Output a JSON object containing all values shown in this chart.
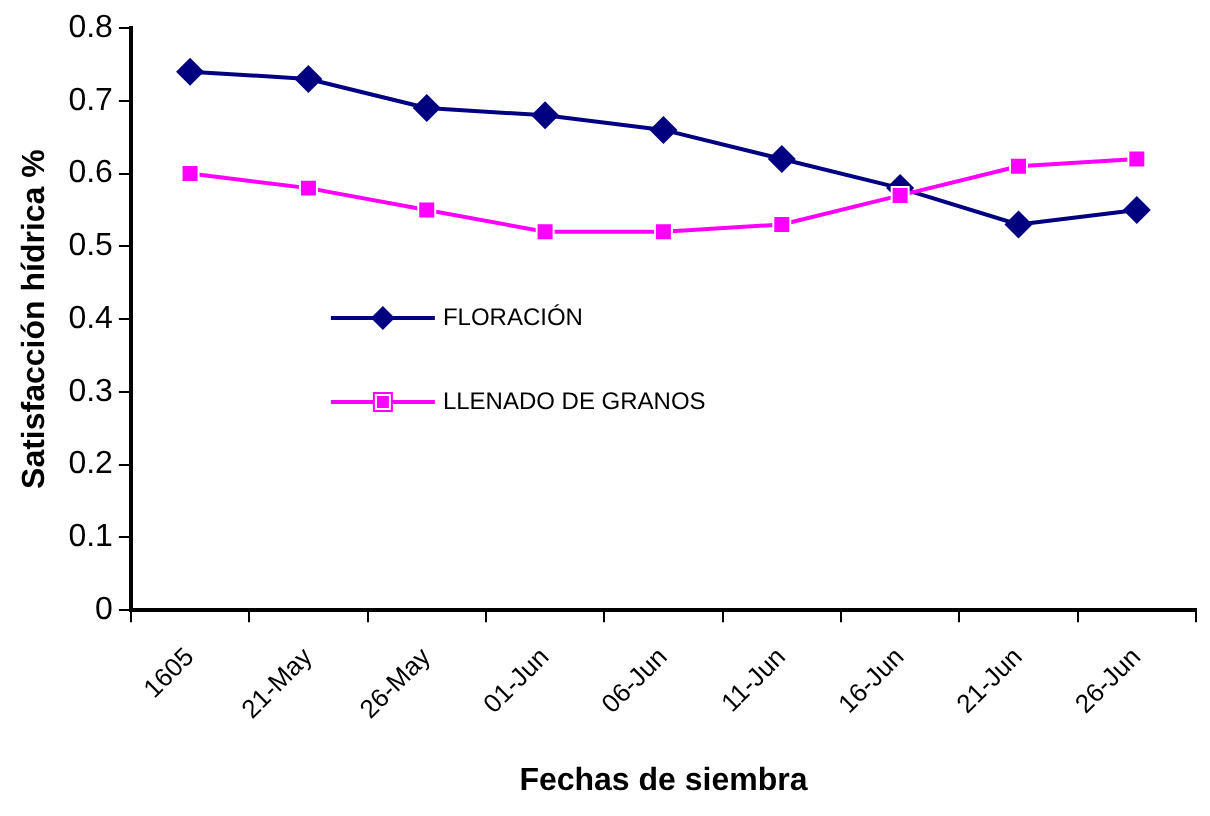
{
  "chart_data": {
    "type": "line",
    "xlabel": "Fechas de siembra",
    "ylabel": "Satisfacción hídrica %",
    "categories": [
      "1605",
      "21-May",
      "26-May",
      "01-Jun",
      "06-Jun",
      "11-Jun",
      "16-Jun",
      "21-Jun",
      "26-Jun"
    ],
    "series": [
      {
        "name": "FLORACIÓN",
        "color": "#000080",
        "marker": "diamond",
        "values": [
          0.74,
          0.73,
          0.69,
          0.68,
          0.66,
          0.62,
          0.58,
          0.53,
          0.55
        ]
      },
      {
        "name": "LLENADO DE GRANOS",
        "color": "#ff00ff",
        "marker": "square",
        "values": [
          0.6,
          0.58,
          0.55,
          0.52,
          0.52,
          0.53,
          0.57,
          0.61,
          0.62
        ]
      }
    ],
    "ylim": [
      0,
      0.8
    ],
    "yticks": [
      0,
      0.1,
      0.2,
      0.3,
      0.4,
      0.5,
      0.6,
      0.7,
      0.8
    ],
    "grid": false,
    "legend": "center",
    "line_style": "solid"
  }
}
